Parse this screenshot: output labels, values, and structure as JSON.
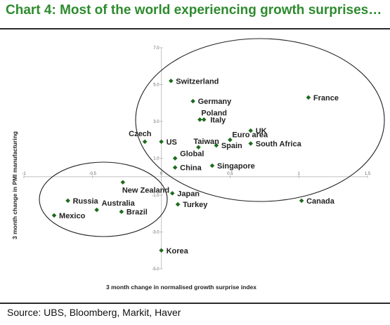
{
  "header": {
    "title": "Chart 4: Most of the world experiencing growth surprises…"
  },
  "footer": {
    "source": "Source: UBS, Bloomberg, Markit, Haver"
  },
  "colors": {
    "title": "#2e8b2e",
    "marker": "#1f6b1f",
    "rule": "#2a2a2a"
  },
  "chart_data": {
    "type": "scatter",
    "title": "",
    "xlabel": "3 month change in normalised growth surprise index",
    "ylabel": "3 month change in PMI manufacturing",
    "xlim": [
      -1.0,
      1.5
    ],
    "ylim": [
      -5.0,
      7.0
    ],
    "x_ticks": [
      -1,
      -0.5,
      0,
      0.5,
      1,
      1.5
    ],
    "x_tick_labels": [
      "-1",
      "-0.5",
      "0",
      "0.5",
      "1",
      "1.5"
    ],
    "y_ticks": [
      -5,
      -3,
      -1,
      1,
      3,
      5,
      7
    ],
    "y_tick_labels": [
      "-5.0",
      "-3.0",
      "-1.0",
      "1.0",
      "3.0",
      "5.0",
      "7.0"
    ],
    "grid": false,
    "legend": "none",
    "points": [
      {
        "label": "Switzerland",
        "x": 0.07,
        "y": 5.2
      },
      {
        "label": "France",
        "x": 1.07,
        "y": 4.3
      },
      {
        "label": "Germany",
        "x": 0.23,
        "y": 4.1
      },
      {
        "label": "Poland",
        "x": 0.28,
        "y": 3.1
      },
      {
        "label": "Italy",
        "x": 0.31,
        "y": 3.1
      },
      {
        "label": "UK",
        "x": 0.65,
        "y": 2.5
      },
      {
        "label": "Euro area",
        "x": 0.5,
        "y": 2.0
      },
      {
        "label": "Czech",
        "x": -0.12,
        "y": 1.9
      },
      {
        "label": "US",
        "x": 0.0,
        "y": 1.9
      },
      {
        "label": "Taiwan",
        "x": 0.27,
        "y": 1.6
      },
      {
        "label": "Spain",
        "x": 0.4,
        "y": 1.7
      },
      {
        "label": "South Africa",
        "x": 0.65,
        "y": 1.8
      },
      {
        "label": "Global",
        "x": 0.1,
        "y": 1.0
      },
      {
        "label": "China",
        "x": 0.1,
        "y": 0.5
      },
      {
        "label": "Singapore",
        "x": 0.37,
        "y": 0.6
      },
      {
        "label": "New Zealand",
        "x": -0.28,
        "y": -0.3
      },
      {
        "label": "Japan",
        "x": 0.08,
        "y": -0.9
      },
      {
        "label": "Canada",
        "x": 1.02,
        "y": -1.3
      },
      {
        "label": "Russia",
        "x": -0.68,
        "y": -1.3
      },
      {
        "label": "Turkey",
        "x": 0.12,
        "y": -1.5
      },
      {
        "label": "Australia",
        "x": -0.47,
        "y": -1.8
      },
      {
        "label": "Mexico",
        "x": -0.78,
        "y": -2.1
      },
      {
        "label": "Brazil",
        "x": -0.29,
        "y": -1.9
      },
      {
        "label": "Korea",
        "x": 0.0,
        "y": -4.0
      }
    ]
  }
}
